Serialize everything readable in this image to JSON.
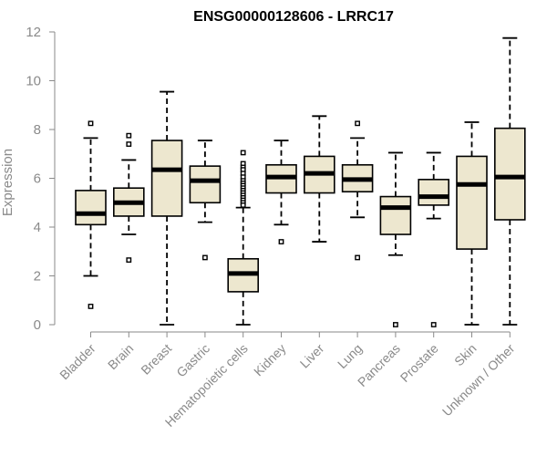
{
  "chart_data": {
    "type": "boxplot",
    "title": "ENSG00000128606 - LRRC17",
    "xlabel": "",
    "ylabel": "Expression",
    "ylim": [
      0,
      12
    ],
    "yticks": [
      0,
      2,
      4,
      6,
      8,
      10,
      12
    ],
    "grid": false,
    "colors": {
      "box_fill": "#ede7cf",
      "box_stroke": "#000000",
      "axis": "#8a8a8a"
    },
    "categories": [
      "Bladder",
      "Brain",
      "Breast",
      "Gastric",
      "Hematopoietic cells",
      "Kidney",
      "Liver",
      "Lung",
      "Pancreas",
      "Prostate",
      "Skin",
      "Unknown / Other"
    ],
    "boxes": [
      {
        "min": 2.0,
        "q1": 4.1,
        "median": 4.55,
        "q3": 5.5,
        "max": 7.65,
        "outliers": [
          8.25,
          0.75
        ]
      },
      {
        "min": 3.7,
        "q1": 4.45,
        "median": 5.0,
        "q3": 5.6,
        "max": 6.75,
        "outliers": [
          7.75,
          7.4,
          2.65
        ]
      },
      {
        "min": 0.0,
        "q1": 4.45,
        "median": 6.35,
        "q3": 7.55,
        "max": 9.55,
        "outliers": []
      },
      {
        "min": 4.2,
        "q1": 5.0,
        "median": 5.9,
        "q3": 6.5,
        "max": 7.55,
        "outliers": [
          2.75
        ]
      },
      {
        "min": 0.0,
        "q1": 1.35,
        "median": 2.1,
        "q3": 2.7,
        "max": 4.8,
        "outliers": [
          7.05,
          6.6,
          6.45,
          6.35,
          6.2,
          6.05,
          5.9,
          5.8,
          5.7,
          5.6,
          5.5,
          5.4,
          5.3,
          5.2,
          5.1,
          5.0,
          4.9
        ]
      },
      {
        "min": 4.1,
        "q1": 5.4,
        "median": 6.05,
        "q3": 6.55,
        "max": 7.55,
        "outliers": [
          3.4
        ]
      },
      {
        "min": 3.4,
        "q1": 5.4,
        "median": 6.2,
        "q3": 6.9,
        "max": 8.55,
        "outliers": []
      },
      {
        "min": 4.4,
        "q1": 5.45,
        "median": 5.95,
        "q3": 6.55,
        "max": 7.65,
        "outliers": [
          8.25,
          2.75
        ]
      },
      {
        "min": 2.85,
        "q1": 3.7,
        "median": 4.8,
        "q3": 5.25,
        "max": 7.05,
        "outliers": [
          0.0
        ]
      },
      {
        "min": 4.35,
        "q1": 4.9,
        "median": 5.25,
        "q3": 5.95,
        "max": 7.05,
        "outliers": [
          0.0
        ]
      },
      {
        "min": 0.0,
        "q1": 3.1,
        "median": 5.75,
        "q3": 6.9,
        "max": 8.3,
        "outliers": []
      },
      {
        "min": 0.0,
        "q1": 4.3,
        "median": 6.05,
        "q3": 8.05,
        "max": 11.75,
        "outliers": []
      }
    ]
  }
}
